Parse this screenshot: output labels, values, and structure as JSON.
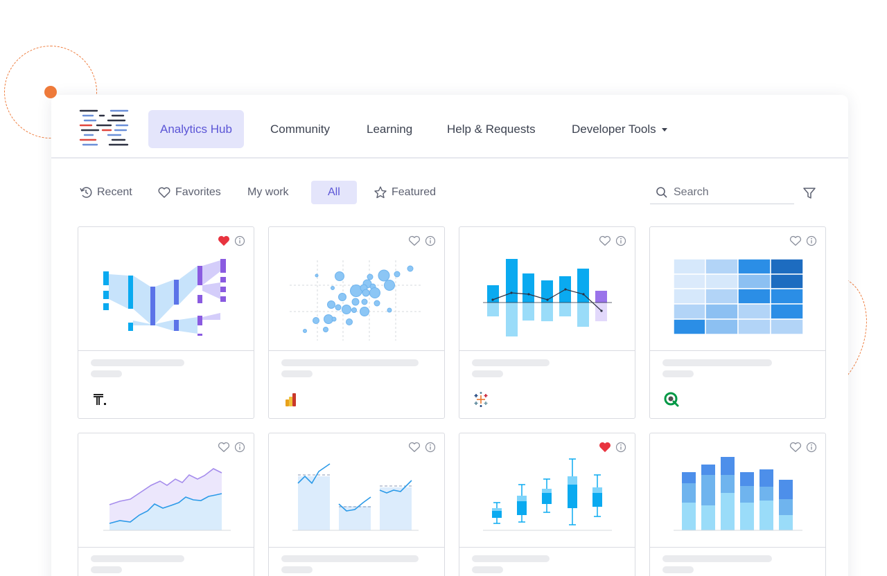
{
  "nav": {
    "items": [
      {
        "label": "Analytics Hub",
        "active": true
      },
      {
        "label": "Community",
        "active": false
      },
      {
        "label": "Learning",
        "active": false
      },
      {
        "label": "Help & Requests",
        "active": false
      },
      {
        "label": "Developer Tools",
        "active": false,
        "has_dropdown": true
      }
    ]
  },
  "filters": {
    "recent": "Recent",
    "favorites": "Favorites",
    "my_work": "My work",
    "all": "All",
    "featured": "Featured",
    "active": "All"
  },
  "search": {
    "placeholder": "Search"
  },
  "cards": [
    {
      "chart": "sankey",
      "favorited": true,
      "provider_icon": "tableau-t-icon"
    },
    {
      "chart": "bubble-scatter",
      "favorited": false,
      "provider_icon": "powerbi-icon"
    },
    {
      "chart": "bar-line-combo",
      "favorited": false,
      "provider_icon": "tableau-icon"
    },
    {
      "chart": "heatmap",
      "favorited": false,
      "provider_icon": "qlik-icon"
    },
    {
      "chart": "area",
      "favorited": false
    },
    {
      "chart": "bar-line-reference",
      "favorited": false
    },
    {
      "chart": "box-plot",
      "favorited": true
    },
    {
      "chart": "stacked-bar",
      "favorited": false
    }
  ],
  "colors": {
    "accent": "#5b55d6",
    "accent_bg": "#e4e5fb",
    "decor_orange": "#ee7a3a",
    "heart_red": "#e8333f",
    "chart_blue": "#0aaaf0",
    "chart_purple": "#8a5be0"
  }
}
